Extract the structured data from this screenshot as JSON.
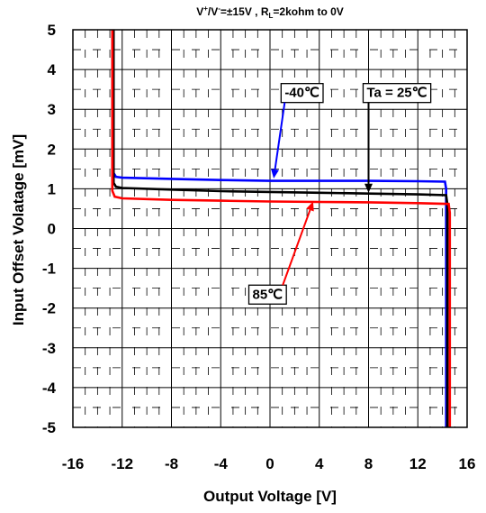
{
  "chart_data": {
    "type": "line",
    "title_parts": [
      "V",
      "+",
      "/V",
      "-",
      "=±15V , R",
      "L",
      "=2kohm to 0V"
    ],
    "xlabel": "Output Voltage [V]",
    "ylabel": "Input Offset Volatage [mV]",
    "xlim": [
      -16,
      16
    ],
    "ylim": [
      -5,
      5
    ],
    "xticks": [
      "-16",
      "-12",
      "-8",
      "-4",
      "0",
      "4",
      "8",
      "12",
      "16"
    ],
    "yticks": [
      "5",
      "4",
      "3",
      "2",
      "1",
      "0",
      "-1",
      "-2",
      "-3",
      "-4",
      "-5"
    ],
    "grid": true,
    "series": [
      {
        "color": "#0000ff",
        "label": "-40℃",
        "x": [
          -12.7,
          -12.7,
          -12.5,
          -12.0,
          -8,
          -4,
          0,
          4,
          8,
          12,
          14.2,
          14.3,
          14.3
        ],
        "y": [
          5,
          1.4,
          1.3,
          1.28,
          1.25,
          1.22,
          1.2,
          1.2,
          1.2,
          1.19,
          1.18,
          1.0,
          -5
        ]
      },
      {
        "color": "#000000",
        "label": "Ta = 25℃",
        "x": [
          -12.7,
          -12.7,
          -12.5,
          -12.0,
          -8,
          -4,
          0,
          4,
          8,
          12,
          14.3,
          14.4,
          14.4
        ],
        "y": [
          5,
          1.15,
          1.05,
          1.02,
          0.98,
          0.94,
          0.92,
          0.9,
          0.88,
          0.86,
          0.84,
          0.6,
          -5
        ]
      },
      {
        "color": "#ff0000",
        "label": "85℃",
        "x": [
          -12.8,
          -12.8,
          -12.6,
          -12.0,
          -8,
          -4,
          0,
          4,
          8,
          12,
          14.5,
          14.6,
          14.6
        ],
        "y": [
          5,
          0.95,
          0.8,
          0.76,
          0.72,
          0.7,
          0.68,
          0.67,
          0.66,
          0.64,
          0.62,
          0.4,
          -5
        ]
      }
    ],
    "annotations": [
      {
        "text": "-40℃",
        "series": 0,
        "label_at": [
          2.6,
          3.42
        ],
        "arrow_to": [
          0.3,
          1.26
        ]
      },
      {
        "text": "Ta = 25℃",
        "series": 1,
        "label_at": [
          10.3,
          3.42
        ],
        "arrow_to": [
          8.0,
          0.9
        ]
      },
      {
        "text": "85℃",
        "series": 2,
        "label_at": [
          -0.2,
          -1.65
        ],
        "arrow_to": [
          3.5,
          0.68
        ]
      }
    ]
  }
}
